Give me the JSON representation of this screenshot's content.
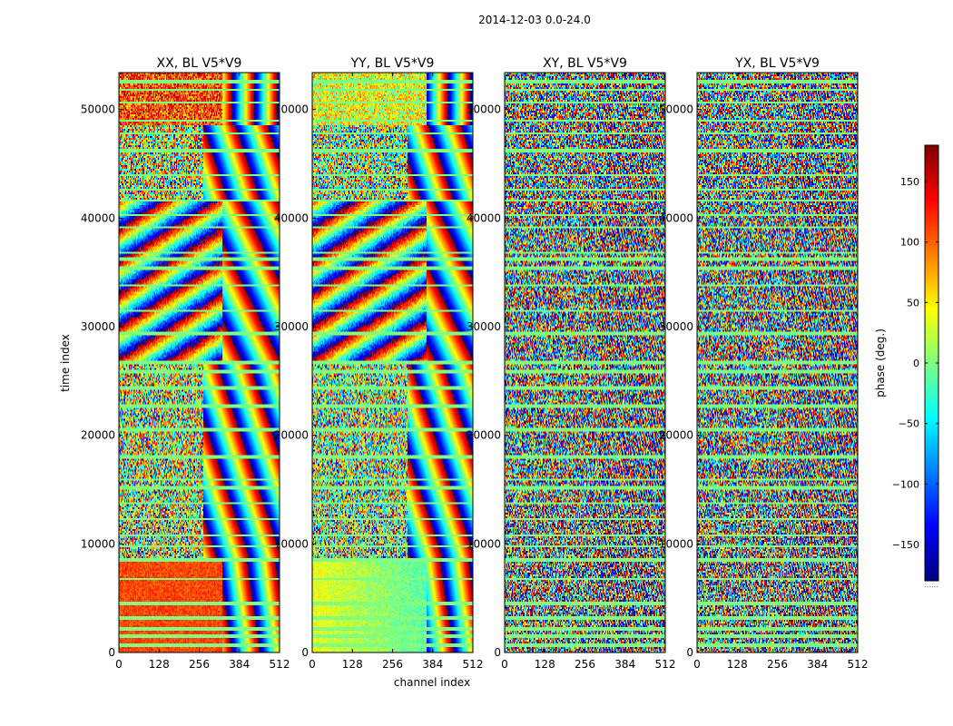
{
  "chart_data": {
    "type": "heatmap",
    "suptitle": "2014-12-03 0.0-24.0",
    "xlabel": "channel index",
    "ylabel": "time index",
    "xticks": [
      0,
      128,
      256,
      384,
      512
    ],
    "xlim": [
      0,
      512
    ],
    "yticks": [
      0,
      10000,
      20000,
      30000,
      40000,
      50000
    ],
    "yticks_labels": [
      "0",
      "10000",
      "20000",
      "30000",
      "40000",
      "50000"
    ],
    "ylim": [
      0,
      53400
    ],
    "colormap": "jet",
    "panels": [
      {
        "title": "XX, BL V5*V9",
        "pol": "XX"
      },
      {
        "title": "YY, BL V5*V9",
        "pol": "YY"
      },
      {
        "title": "XY, BL V5*V9",
        "pol": "XY"
      },
      {
        "title": "YX, BL V5*V9",
        "pol": "YX"
      }
    ],
    "colorbar": {
      "label": "phase (deg.)",
      "range": [
        -180,
        180
      ],
      "ticks": [
        150,
        100,
        50,
        0,
        -50,
        -100,
        -150
      ],
      "tick_labels": [
        "150",
        "100",
        "50",
        "0",
        "−50",
        "−100",
        "−150"
      ],
      "footer": "......"
    }
  }
}
